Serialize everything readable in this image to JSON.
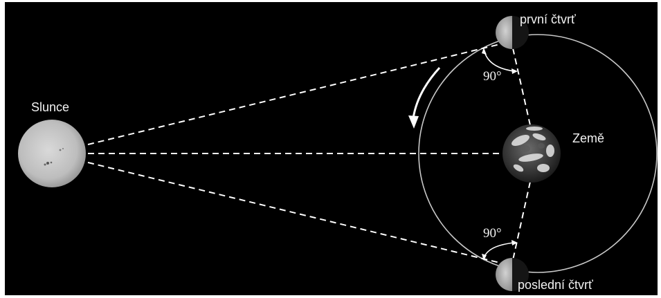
{
  "labels": {
    "sun": "Slunce",
    "earth": "Země",
    "first_quarter": "první čtvrť",
    "last_quarter": "poslední čtvrť"
  },
  "angles": {
    "upper": "90°",
    "lower": "90°"
  },
  "colors": {
    "background": "#000000",
    "lines": "#ffffff",
    "orbit": "#c8c8c8",
    "sun": "#c9c9c9",
    "moon": "#bdbdbd",
    "earth_ocean": "#3a3a3a",
    "earth_cloud": "#e6e6e6"
  }
}
